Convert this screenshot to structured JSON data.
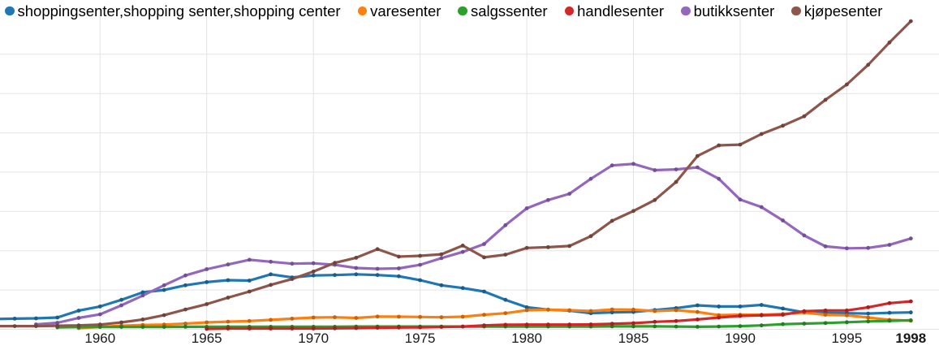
{
  "legend": {
    "items": [
      {
        "key": "shoppingsenter",
        "label": "shoppingsenter,shopping senter,shopping center",
        "color": "#1f77b4"
      },
      {
        "key": "varesenter",
        "label": "varesenter",
        "color": "#ff7f0e"
      },
      {
        "key": "salgssenter",
        "label": "salgssenter",
        "color": "#2ca02c"
      },
      {
        "key": "handlesenter",
        "label": "handlesenter",
        "color": "#d62728"
      },
      {
        "key": "butikksenter",
        "label": "butikksenter",
        "color": "#9467bd"
      },
      {
        "key": "kjopesenter",
        "label": "kjøpesenter",
        "color": "#8c564b"
      }
    ]
  },
  "colors": {
    "background": "#ffffff",
    "gridline": "#e3e3e3",
    "tick_label": "#1a1a1a"
  },
  "chart_data": {
    "type": "line",
    "title": "",
    "xlabel": "",
    "ylabel": "",
    "grid": true,
    "legend_position": "top",
    "xlim": [
      1955.31,
      1999.32
    ],
    "ylim": [
      0,
      8.38
    ],
    "y_gridlines": [
      0,
      1,
      2,
      3,
      4,
      5,
      6,
      7
    ],
    "x_gridline_years": [
      1960,
      1965,
      1970,
      1975,
      1980,
      1985,
      1990,
      1995
    ],
    "x_ticks": [
      {
        "year": 1960,
        "label": "1960",
        "bold": false
      },
      {
        "year": 1965,
        "label": "1965",
        "bold": false
      },
      {
        "year": 1970,
        "label": "1970",
        "bold": false
      },
      {
        "year": 1975,
        "label": "1975",
        "bold": false
      },
      {
        "year": 1980,
        "label": "1980",
        "bold": false
      },
      {
        "year": 1985,
        "label": "1985",
        "bold": false
      },
      {
        "year": 1990,
        "label": "1990",
        "bold": false
      },
      {
        "year": 1995,
        "label": "1995",
        "bold": false
      },
      {
        "year": 1998,
        "label": "1998",
        "bold": true
      }
    ],
    "series": [
      {
        "key": "shoppingsenter",
        "name": "shoppingsenter,shopping senter,shopping center",
        "color": "#1f77b4",
        "points": [
          [
            1955,
            0.26
          ],
          [
            1956,
            0.27
          ],
          [
            1957,
            0.28
          ],
          [
            1958,
            0.3
          ],
          [
            1959,
            0.475
          ],
          [
            1960,
            0.58
          ],
          [
            1961,
            0.75
          ],
          [
            1962,
            0.94
          ],
          [
            1963,
            1.0
          ],
          [
            1964,
            1.12
          ],
          [
            1965,
            1.2
          ],
          [
            1966,
            1.25
          ],
          [
            1967,
            1.24
          ],
          [
            1968,
            1.4
          ],
          [
            1969,
            1.32
          ],
          [
            1970,
            1.37
          ],
          [
            1971,
            1.38
          ],
          [
            1972,
            1.4
          ],
          [
            1973,
            1.38
          ],
          [
            1974,
            1.35
          ],
          [
            1975,
            1.25
          ],
          [
            1976,
            1.12
          ],
          [
            1977,
            1.05
          ],
          [
            1978,
            0.96
          ],
          [
            1979,
            0.75
          ],
          [
            1980,
            0.56
          ],
          [
            1981,
            0.5
          ],
          [
            1982,
            0.475
          ],
          [
            1983,
            0.41
          ],
          [
            1984,
            0.43
          ],
          [
            1985,
            0.44
          ],
          [
            1986,
            0.49
          ],
          [
            1987,
            0.54
          ],
          [
            1988,
            0.61
          ],
          [
            1989,
            0.58
          ],
          [
            1990,
            0.58
          ],
          [
            1991,
            0.62
          ],
          [
            1992,
            0.53
          ],
          [
            1993,
            0.43
          ],
          [
            1994,
            0.42
          ],
          [
            1995,
            0.41
          ],
          [
            1996,
            0.4
          ],
          [
            1997,
            0.42
          ],
          [
            1998,
            0.43
          ]
        ]
      },
      {
        "key": "varesenter",
        "name": "varesenter",
        "color": "#ff7f0e",
        "points": [
          [
            1959,
            0.03
          ],
          [
            1960,
            0.06
          ],
          [
            1961,
            0.09
          ],
          [
            1962,
            0.11
          ],
          [
            1963,
            0.12
          ],
          [
            1964,
            0.145
          ],
          [
            1965,
            0.175
          ],
          [
            1966,
            0.195
          ],
          [
            1967,
            0.21
          ],
          [
            1968,
            0.24
          ],
          [
            1969,
            0.27
          ],
          [
            1970,
            0.3
          ],
          [
            1971,
            0.305
          ],
          [
            1972,
            0.29
          ],
          [
            1973,
            0.325
          ],
          [
            1974,
            0.32
          ],
          [
            1975,
            0.315
          ],
          [
            1976,
            0.305
          ],
          [
            1977,
            0.32
          ],
          [
            1978,
            0.37
          ],
          [
            1979,
            0.41
          ],
          [
            1980,
            0.485
          ],
          [
            1981,
            0.5
          ],
          [
            1982,
            0.485
          ],
          [
            1983,
            0.465
          ],
          [
            1984,
            0.505
          ],
          [
            1985,
            0.5
          ],
          [
            1986,
            0.465
          ],
          [
            1987,
            0.485
          ],
          [
            1988,
            0.44
          ],
          [
            1989,
            0.36
          ],
          [
            1990,
            0.37
          ],
          [
            1991,
            0.37
          ],
          [
            1992,
            0.39
          ],
          [
            1993,
            0.425
          ],
          [
            1994,
            0.37
          ],
          [
            1995,
            0.355
          ],
          [
            1996,
            0.3
          ],
          [
            1997,
            0.24
          ],
          [
            1998,
            0.22
          ]
        ]
      },
      {
        "key": "salgssenter",
        "name": "salgssenter",
        "color": "#2ca02c",
        "points": [
          [
            1958,
            0.05
          ],
          [
            1959,
            0.055
          ],
          [
            1960,
            0.06
          ],
          [
            1961,
            0.06
          ],
          [
            1962,
            0.06
          ],
          [
            1963,
            0.06
          ],
          [
            1964,
            0.065
          ],
          [
            1965,
            0.065
          ],
          [
            1966,
            0.065
          ],
          [
            1967,
            0.065
          ],
          [
            1968,
            0.065
          ],
          [
            1969,
            0.065
          ],
          [
            1970,
            0.065
          ],
          [
            1971,
            0.065
          ],
          [
            1972,
            0.07
          ],
          [
            1973,
            0.07
          ],
          [
            1974,
            0.07
          ],
          [
            1975,
            0.07
          ],
          [
            1976,
            0.07
          ],
          [
            1977,
            0.07
          ],
          [
            1978,
            0.07
          ],
          [
            1979,
            0.07
          ],
          [
            1980,
            0.07
          ],
          [
            1981,
            0.07
          ],
          [
            1982,
            0.07
          ],
          [
            1983,
            0.07
          ],
          [
            1984,
            0.075
          ],
          [
            1985,
            0.075
          ],
          [
            1986,
            0.075
          ],
          [
            1987,
            0.07
          ],
          [
            1988,
            0.065
          ],
          [
            1989,
            0.07
          ],
          [
            1990,
            0.08
          ],
          [
            1991,
            0.1
          ],
          [
            1992,
            0.13
          ],
          [
            1993,
            0.145
          ],
          [
            1994,
            0.16
          ],
          [
            1995,
            0.18
          ],
          [
            1996,
            0.2
          ],
          [
            1997,
            0.215
          ],
          [
            1998,
            0.23
          ]
        ]
      },
      {
        "key": "handlesenter",
        "name": "handlesenter",
        "color": "#d62728",
        "points": [
          [
            1965,
            0.01
          ],
          [
            1966,
            0.02
          ],
          [
            1967,
            0.02
          ],
          [
            1968,
            0.02
          ],
          [
            1969,
            0.02
          ],
          [
            1970,
            0.02
          ],
          [
            1971,
            0.025
          ],
          [
            1972,
            0.03
          ],
          [
            1973,
            0.04
          ],
          [
            1974,
            0.045
          ],
          [
            1975,
            0.05
          ],
          [
            1976,
            0.06
          ],
          [
            1977,
            0.07
          ],
          [
            1978,
            0.1
          ],
          [
            1979,
            0.115
          ],
          [
            1980,
            0.12
          ],
          [
            1981,
            0.12
          ],
          [
            1982,
            0.12
          ],
          [
            1983,
            0.125
          ],
          [
            1984,
            0.14
          ],
          [
            1985,
            0.155
          ],
          [
            1986,
            0.19
          ],
          [
            1987,
            0.21
          ],
          [
            1988,
            0.25
          ],
          [
            1989,
            0.3
          ],
          [
            1990,
            0.34
          ],
          [
            1991,
            0.355
          ],
          [
            1992,
            0.37
          ],
          [
            1993,
            0.46
          ],
          [
            1994,
            0.48
          ],
          [
            1995,
            0.48
          ],
          [
            1996,
            0.56
          ],
          [
            1997,
            0.665
          ],
          [
            1998,
            0.71
          ]
        ]
      },
      {
        "key": "butikksenter",
        "name": "butikksenter",
        "color": "#9467bd",
        "points": [
          [
            1957,
            0.125
          ],
          [
            1958,
            0.165
          ],
          [
            1959,
            0.29
          ],
          [
            1960,
            0.38
          ],
          [
            1961,
            0.61
          ],
          [
            1962,
            0.86
          ],
          [
            1963,
            1.12
          ],
          [
            1964,
            1.37
          ],
          [
            1965,
            1.53
          ],
          [
            1966,
            1.65
          ],
          [
            1967,
            1.77
          ],
          [
            1968,
            1.72
          ],
          [
            1969,
            1.67
          ],
          [
            1970,
            1.68
          ],
          [
            1971,
            1.64
          ],
          [
            1972,
            1.56
          ],
          [
            1973,
            1.54
          ],
          [
            1974,
            1.55
          ],
          [
            1975,
            1.64
          ],
          [
            1976,
            1.81
          ],
          [
            1977,
            1.97
          ],
          [
            1978,
            2.17
          ],
          [
            1979,
            2.65
          ],
          [
            1980,
            3.08
          ],
          [
            1981,
            3.29
          ],
          [
            1982,
            3.45
          ],
          [
            1983,
            3.83
          ],
          [
            1984,
            4.17
          ],
          [
            1985,
            4.21
          ],
          [
            1986,
            4.05
          ],
          [
            1987,
            4.07
          ],
          [
            1988,
            4.12
          ],
          [
            1989,
            3.83
          ],
          [
            1990,
            3.3
          ],
          [
            1991,
            3.11
          ],
          [
            1992,
            2.77
          ],
          [
            1993,
            2.39
          ],
          [
            1994,
            2.11
          ],
          [
            1995,
            2.06
          ],
          [
            1996,
            2.07
          ],
          [
            1997,
            2.15
          ],
          [
            1998,
            2.31
          ]
        ]
      },
      {
        "key": "kjopesenter",
        "name": "kjøpesenter",
        "color": "#8c564b",
        "points": [
          [
            1955,
            0.08
          ],
          [
            1956,
            0.08
          ],
          [
            1957,
            0.08
          ],
          [
            1958,
            0.09
          ],
          [
            1959,
            0.1
          ],
          [
            1960,
            0.12
          ],
          [
            1961,
            0.175
          ],
          [
            1962,
            0.25
          ],
          [
            1963,
            0.36
          ],
          [
            1964,
            0.505
          ],
          [
            1965,
            0.64
          ],
          [
            1966,
            0.805
          ],
          [
            1967,
            0.96
          ],
          [
            1968,
            1.13
          ],
          [
            1969,
            1.28
          ],
          [
            1970,
            1.47
          ],
          [
            1971,
            1.69
          ],
          [
            1972,
            1.82
          ],
          [
            1973,
            2.04
          ],
          [
            1974,
            1.85
          ],
          [
            1975,
            1.87
          ],
          [
            1976,
            1.91
          ],
          [
            1977,
            2.13
          ],
          [
            1978,
            1.83
          ],
          [
            1979,
            1.9
          ],
          [
            1980,
            2.07
          ],
          [
            1981,
            2.09
          ],
          [
            1982,
            2.12
          ],
          [
            1983,
            2.37
          ],
          [
            1984,
            2.76
          ],
          [
            1985,
            3.01
          ],
          [
            1986,
            3.29
          ],
          [
            1987,
            3.75
          ],
          [
            1988,
            4.41
          ],
          [
            1989,
            4.68
          ],
          [
            1990,
            4.7
          ],
          [
            1991,
            4.97
          ],
          [
            1992,
            5.18
          ],
          [
            1993,
            5.42
          ],
          [
            1994,
            5.84
          ],
          [
            1995,
            6.23
          ],
          [
            1996,
            6.73
          ],
          [
            1997,
            7.3
          ],
          [
            1998,
            7.84
          ]
        ]
      }
    ]
  }
}
